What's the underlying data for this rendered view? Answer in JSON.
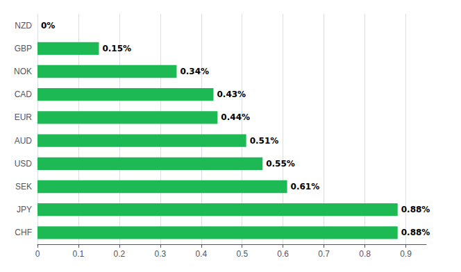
{
  "chart_data": {
    "type": "bar",
    "orientation": "horizontal",
    "categories": [
      "CHF",
      "JPY",
      "SEK",
      "USD",
      "AUD",
      "EUR",
      "CAD",
      "NOK",
      "GBP",
      "NZD"
    ],
    "values": [
      0.88,
      0.88,
      0.61,
      0.55,
      0.51,
      0.44,
      0.43,
      0.34,
      0.15,
      0.0
    ],
    "value_labels": [
      "0.88%",
      "0.88%",
      "0.61%",
      "0.55%",
      "0.51%",
      "0.44%",
      "0.43%",
      "0.34%",
      "0.15%",
      "0%"
    ],
    "data_labels": true,
    "color": "#1db954",
    "xlim": [
      0,
      0.95
    ],
    "xticks": [
      0,
      0.1,
      0.2,
      0.3,
      0.4,
      0.5,
      0.6,
      0.7,
      0.8,
      0.9
    ],
    "grid": true
  }
}
